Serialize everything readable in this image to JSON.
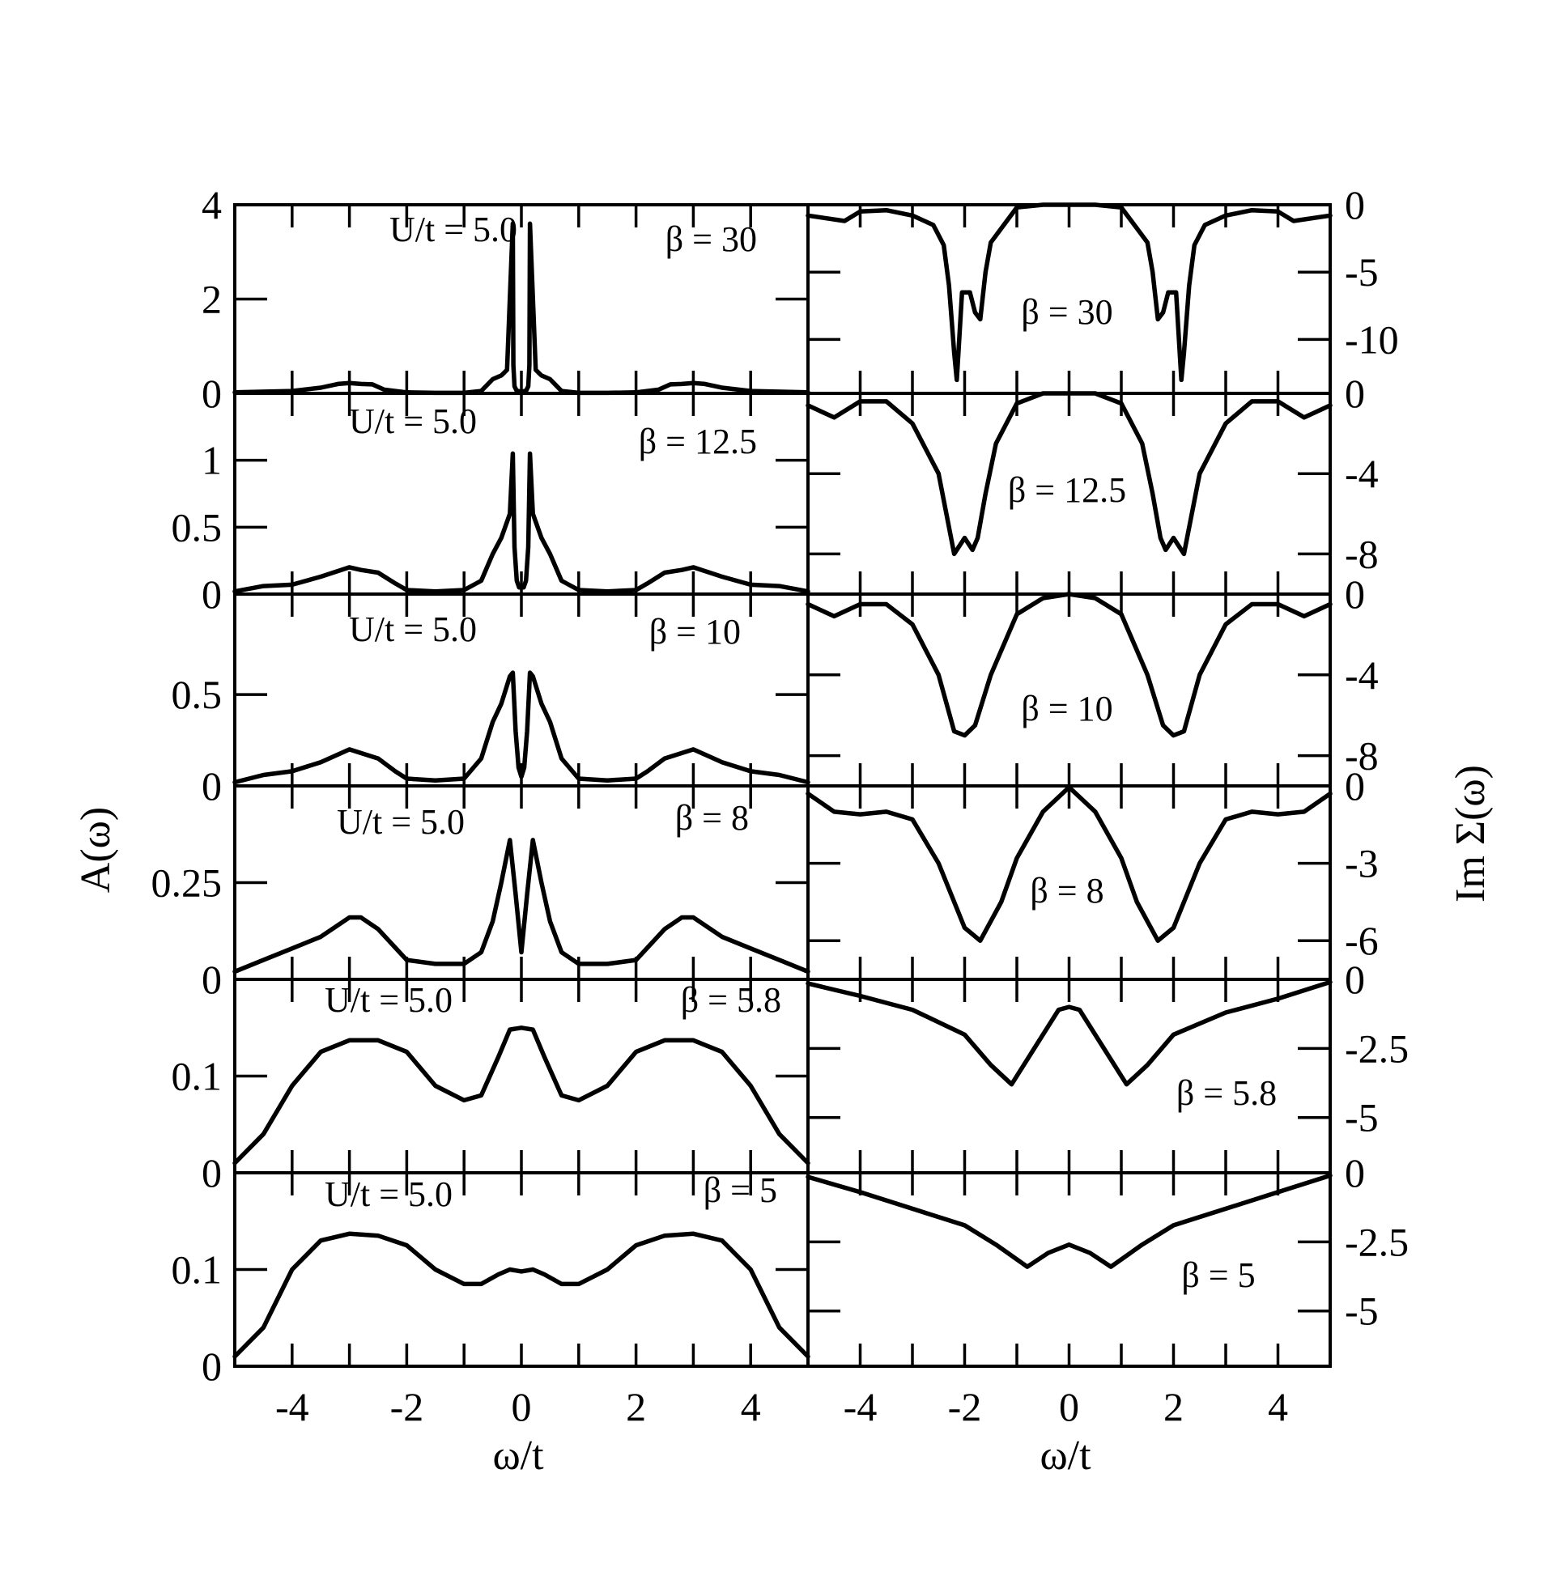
{
  "figure": {
    "left_ylabel": "A(ω)",
    "right_ylabel": "Im Σ(ω)",
    "xlabel_left": "ω/t",
    "xlabel_right": "ω/t",
    "x_ticks": [
      "-4",
      "-2",
      "0",
      "2",
      "4"
    ]
  },
  "chart_data": [
    {
      "type": "line",
      "panel": "A-1",
      "annotation_u": "U/t = 5.0",
      "annotation_beta": "β = 30",
      "xlim": [
        -5,
        5
      ],
      "ylim": [
        0,
        4
      ],
      "yticks": [
        0,
        2,
        4
      ],
      "ytick_labels": [
        "0",
        "2",
        "4"
      ],
      "series": [
        {
          "x": [
            -5,
            -4,
            -3.5,
            -3.2,
            -3,
            -2.8,
            -2.6,
            -2.4,
            -2,
            -1.5,
            -1,
            -0.7,
            -0.5,
            -0.35,
            -0.25,
            -0.15,
            -0.14,
            -0.12,
            -0.08,
            -0.05,
            0,
            0.05,
            0.08,
            0.12,
            0.14,
            0.15,
            0.25,
            0.35,
            0.5,
            0.7,
            1,
            1.5,
            2,
            2.4,
            2.6,
            2.8,
            3,
            3.2,
            3.5,
            4,
            5
          ],
          "y": [
            0.02,
            0.05,
            0.12,
            0.2,
            0.22,
            0.2,
            0.19,
            0.08,
            0.02,
            0.01,
            0.01,
            0.05,
            0.3,
            0.38,
            0.5,
            3.6,
            0.6,
            0.15,
            0.05,
            0.05,
            0.0,
            0.05,
            0.05,
            0.15,
            0.6,
            3.6,
            0.5,
            0.38,
            0.3,
            0.05,
            0.01,
            0.01,
            0.02,
            0.08,
            0.19,
            0.2,
            0.22,
            0.2,
            0.12,
            0.05,
            0.02
          ]
        }
      ]
    },
    {
      "type": "line",
      "panel": "A-2",
      "annotation_u": "U/t = 5.0",
      "annotation_beta": "β = 12.5",
      "xlim": [
        -5,
        5
      ],
      "ylim": [
        0,
        1.5
      ],
      "yticks": [
        0,
        0.5,
        1
      ],
      "ytick_labels": [
        "0",
        "0.5",
        "1"
      ],
      "series": [
        {
          "x": [
            -5,
            -4.5,
            -4,
            -3.5,
            -3,
            -2.8,
            -2.5,
            -2.2,
            -2,
            -1.5,
            -1,
            -0.7,
            -0.5,
            -0.35,
            -0.2,
            -0.15,
            -0.12,
            -0.08,
            -0.04,
            0,
            0.04,
            0.08,
            0.12,
            0.15,
            0.2,
            0.35,
            0.5,
            0.7,
            1,
            1.5,
            2,
            2.2,
            2.5,
            2.8,
            3,
            3.5,
            4,
            4.5,
            5
          ],
          "y": [
            0.02,
            0.06,
            0.07,
            0.13,
            0.2,
            0.18,
            0.16,
            0.08,
            0.03,
            0.02,
            0.03,
            0.1,
            0.3,
            0.42,
            0.6,
            1.05,
            0.35,
            0.1,
            0.05,
            0.05,
            0.05,
            0.1,
            0.35,
            1.05,
            0.6,
            0.42,
            0.3,
            0.1,
            0.03,
            0.02,
            0.03,
            0.08,
            0.16,
            0.18,
            0.2,
            0.13,
            0.07,
            0.06,
            0.02
          ]
        }
      ]
    },
    {
      "type": "line",
      "panel": "A-3",
      "annotation_u": "U/t = 5.0",
      "annotation_beta": "β = 10",
      "xlim": [
        -5,
        5
      ],
      "ylim": [
        0,
        1.05
      ],
      "yticks": [
        0,
        0.5
      ],
      "ytick_labels": [
        "0",
        "0.5"
      ],
      "series": [
        {
          "x": [
            -5,
            -4.5,
            -4,
            -3.5,
            -3,
            -2.8,
            -2.5,
            -2.2,
            -2,
            -1.5,
            -1,
            -0.7,
            -0.5,
            -0.35,
            -0.2,
            -0.15,
            -0.1,
            -0.05,
            0,
            0.05,
            0.1,
            0.15,
            0.2,
            0.35,
            0.5,
            0.7,
            1,
            1.5,
            2,
            2.2,
            2.5,
            2.8,
            3,
            3.5,
            4,
            4.5,
            5
          ],
          "y": [
            0.02,
            0.06,
            0.08,
            0.13,
            0.2,
            0.18,
            0.15,
            0.08,
            0.04,
            0.03,
            0.04,
            0.15,
            0.35,
            0.45,
            0.6,
            0.62,
            0.3,
            0.1,
            0.05,
            0.1,
            0.3,
            0.62,
            0.6,
            0.45,
            0.35,
            0.15,
            0.04,
            0.03,
            0.04,
            0.08,
            0.15,
            0.18,
            0.2,
            0.13,
            0.08,
            0.06,
            0.02
          ]
        }
      ]
    },
    {
      "type": "line",
      "panel": "A-4",
      "annotation_u": "U/t = 5.0",
      "annotation_beta": "β = 8",
      "xlim": [
        -5,
        5
      ],
      "ylim": [
        0,
        0.5
      ],
      "yticks": [
        0,
        0.25
      ],
      "ytick_labels": [
        "0",
        "0.25"
      ],
      "series": [
        {
          "x": [
            -5,
            -4.5,
            -4,
            -3.5,
            -3,
            -2.8,
            -2.5,
            -2,
            -1.5,
            -1,
            -0.7,
            -0.5,
            -0.35,
            -0.2,
            -0.1,
            0,
            0.1,
            0.2,
            0.35,
            0.5,
            0.7,
            1,
            1.5,
            2,
            2.5,
            2.8,
            3,
            3.5,
            4,
            4.5,
            5
          ],
          "y": [
            0.02,
            0.05,
            0.08,
            0.11,
            0.16,
            0.16,
            0.13,
            0.05,
            0.04,
            0.04,
            0.07,
            0.15,
            0.25,
            0.36,
            0.22,
            0.07,
            0.22,
            0.36,
            0.25,
            0.15,
            0.07,
            0.04,
            0.04,
            0.05,
            0.13,
            0.16,
            0.16,
            0.11,
            0.08,
            0.05,
            0.02
          ]
        }
      ]
    },
    {
      "type": "line",
      "panel": "A-5",
      "annotation_u": "U/t = 5.0",
      "annotation_beta": "β = 5.8",
      "xlim": [
        -5,
        5
      ],
      "ylim": [
        0,
        0.2
      ],
      "yticks": [
        0,
        0.1
      ],
      "ytick_labels": [
        "0",
        "0.1"
      ],
      "series": [
        {
          "x": [
            -5,
            -4.5,
            -4,
            -3.5,
            -3,
            -2.5,
            -2,
            -1.5,
            -1,
            -0.7,
            -0.4,
            -0.2,
            0,
            0.2,
            0.4,
            0.7,
            1,
            1.5,
            2,
            2.5,
            3,
            3.5,
            4,
            4.5,
            5
          ],
          "y": [
            0.01,
            0.04,
            0.09,
            0.125,
            0.137,
            0.137,
            0.125,
            0.09,
            0.075,
            0.08,
            0.12,
            0.148,
            0.15,
            0.148,
            0.12,
            0.08,
            0.075,
            0.09,
            0.125,
            0.137,
            0.137,
            0.125,
            0.09,
            0.04,
            0.01
          ]
        }
      ]
    },
    {
      "type": "line",
      "panel": "A-6",
      "annotation_u": "U/t = 5.0",
      "annotation_beta": "β = 5",
      "xlim": [
        -5,
        5
      ],
      "ylim": [
        0,
        0.2
      ],
      "yticks": [
        0,
        0.1
      ],
      "ytick_labels": [
        "0",
        "0.1"
      ],
      "series": [
        {
          "x": [
            -5,
            -4.5,
            -4,
            -3.5,
            -3,
            -2.5,
            -2,
            -1.5,
            -1,
            -0.7,
            -0.4,
            -0.2,
            0,
            0.2,
            0.4,
            0.7,
            1,
            1.5,
            2,
            2.5,
            3,
            3.5,
            4,
            4.5,
            5
          ],
          "y": [
            0.01,
            0.04,
            0.1,
            0.13,
            0.137,
            0.135,
            0.125,
            0.1,
            0.085,
            0.085,
            0.095,
            0.1,
            0.098,
            0.1,
            0.095,
            0.085,
            0.085,
            0.1,
            0.125,
            0.135,
            0.137,
            0.13,
            0.1,
            0.04,
            0.01
          ]
        }
      ]
    },
    {
      "type": "line",
      "panel": "S-1",
      "annotation_beta": "β = 30",
      "xlim": [
        -5,
        5
      ],
      "ylim": [
        -14,
        0
      ],
      "yticks": [
        0,
        -5,
        -10
      ],
      "ytick_labels": [
        "0",
        "-5",
        "-10"
      ],
      "series": [
        {
          "x": [
            -5,
            -4.3,
            -4,
            -3.5,
            -3,
            -2.6,
            -2.4,
            -2.3,
            -2.2,
            -2.15,
            -2.05,
            -1.9,
            -1.8,
            -1.7,
            -1.6,
            -1.5,
            -1,
            -0.5,
            0,
            0.5,
            1,
            1.5,
            1.6,
            1.7,
            1.8,
            1.9,
            2.05,
            2.15,
            2.2,
            2.3,
            2.4,
            2.6,
            3,
            3.5,
            4,
            4.3,
            5
          ],
          "y": [
            -0.8,
            -1.2,
            -0.5,
            -0.4,
            -0.8,
            -1.5,
            -3,
            -6,
            -11,
            -13,
            -6.5,
            -6.5,
            -8,
            -8.5,
            -5,
            -2.8,
            -0.2,
            0,
            0,
            0,
            -0.2,
            -2.8,
            -5,
            -8.5,
            -8,
            -6.5,
            -6.5,
            -13,
            -11,
            -6,
            -3,
            -1.5,
            -0.8,
            -0.4,
            -0.5,
            -1.2,
            -0.8
          ]
        }
      ]
    },
    {
      "type": "line",
      "panel": "S-2",
      "annotation_beta": "β = 12.5",
      "xlim": [
        -5,
        5
      ],
      "ylim": [
        -10,
        0
      ],
      "yticks": [
        0,
        -4,
        -8
      ],
      "ytick_labels": [
        "0",
        "-4",
        "-8"
      ],
      "series": [
        {
          "x": [
            -5,
            -4.5,
            -4,
            -3.5,
            -3,
            -2.5,
            -2.2,
            -2,
            -1.85,
            -1.75,
            -1.6,
            -1.4,
            -1,
            -0.5,
            0,
            0.5,
            1,
            1.4,
            1.6,
            1.75,
            1.85,
            2,
            2.2,
            2.5,
            3,
            3.5,
            4,
            4.5,
            5
          ],
          "y": [
            -0.6,
            -1.2,
            -0.4,
            -0.4,
            -1.5,
            -4,
            -8,
            -7.2,
            -7.8,
            -7.2,
            -5,
            -2.5,
            -0.5,
            0,
            0,
            0,
            -0.5,
            -2.5,
            -5,
            -7.2,
            -7.8,
            -7.2,
            -8,
            -4,
            -1.5,
            -0.4,
            -0.4,
            -1.2,
            -0.6
          ]
        }
      ]
    },
    {
      "type": "line",
      "panel": "S-3",
      "annotation_beta": "β = 10",
      "xlim": [
        -5,
        5
      ],
      "ylim": [
        -9.5,
        0
      ],
      "yticks": [
        0,
        -4,
        -8
      ],
      "ytick_labels": [
        "0",
        "-4",
        "-8"
      ],
      "series": [
        {
          "x": [
            -5,
            -4.5,
            -4,
            -3.5,
            -3,
            -2.5,
            -2.2,
            -2,
            -1.8,
            -1.5,
            -1,
            -0.5,
            0,
            0.5,
            1,
            1.5,
            1.8,
            2,
            2.2,
            2.5,
            3,
            3.5,
            4,
            4.5,
            5
          ],
          "y": [
            -0.5,
            -1.1,
            -0.5,
            -0.5,
            -1.5,
            -4,
            -6.8,
            -7,
            -6.5,
            -4,
            -1,
            -0.2,
            0,
            -0.2,
            -1,
            -4,
            -6.5,
            -7,
            -6.8,
            -4,
            -1.5,
            -0.5,
            -0.5,
            -1.1,
            -0.5
          ]
        }
      ]
    },
    {
      "type": "line",
      "panel": "S-4",
      "annotation_beta": "β = 8",
      "xlim": [
        -5,
        5
      ],
      "ylim": [
        -7.5,
        0
      ],
      "yticks": [
        0,
        -3,
        -6
      ],
      "ytick_labels": [
        "0",
        "-3",
        "-6"
      ],
      "series": [
        {
          "x": [
            -5,
            -4.5,
            -4,
            -3.5,
            -3,
            -2.5,
            -2,
            -1.7,
            -1.3,
            -1,
            -0.5,
            0,
            0.5,
            1,
            1.3,
            1.7,
            2,
            2.5,
            3,
            3.5,
            4,
            4.5,
            5
          ],
          "y": [
            -0.3,
            -1,
            -1.1,
            -1,
            -1.3,
            -3,
            -5.5,
            -6,
            -4.5,
            -2.8,
            -1,
            -0.05,
            -1,
            -2.8,
            -4.5,
            -6,
            -5.5,
            -3,
            -1.3,
            -1,
            -1.1,
            -1,
            -0.3
          ]
        }
      ]
    },
    {
      "type": "line",
      "panel": "S-5",
      "annotation_beta": "β = 5.8",
      "xlim": [
        -5,
        5
      ],
      "ylim": [
        -7,
        0
      ],
      "yticks": [
        0,
        -2.5,
        -5
      ],
      "ytick_labels": [
        "0",
        "-2.5",
        "-5"
      ],
      "series": [
        {
          "x": [
            -5,
            -4,
            -3,
            -2,
            -1.5,
            -1.1,
            -0.6,
            -0.2,
            0,
            0.2,
            0.6,
            1.1,
            1.5,
            2,
            3,
            4,
            5
          ],
          "y": [
            -0.15,
            -0.6,
            -1.1,
            -2,
            -3.1,
            -3.8,
            -2.3,
            -1.1,
            -1.0,
            -1.1,
            -2.3,
            -3.8,
            -3.1,
            -2,
            -1.2,
            -0.7,
            -0.1
          ]
        }
      ]
    },
    {
      "type": "line",
      "panel": "S-6",
      "annotation_beta": "β = 5",
      "xlim": [
        -5,
        5
      ],
      "ylim": [
        -7,
        0
      ],
      "yticks": [
        0,
        -2.5,
        -5
      ],
      "ytick_labels": [
        "0",
        "-2.5",
        "-5"
      ],
      "series": [
        {
          "x": [
            -5,
            -4,
            -3,
            -2,
            -1.4,
            -0.8,
            -0.4,
            0,
            0.4,
            0.8,
            1.4,
            2,
            3,
            4,
            5
          ],
          "y": [
            -0.15,
            -0.7,
            -1.3,
            -1.9,
            -2.6,
            -3.4,
            -2.9,
            -2.6,
            -2.9,
            -3.4,
            -2.6,
            -1.9,
            -1.3,
            -0.7,
            -0.1
          ]
        }
      ]
    }
  ]
}
